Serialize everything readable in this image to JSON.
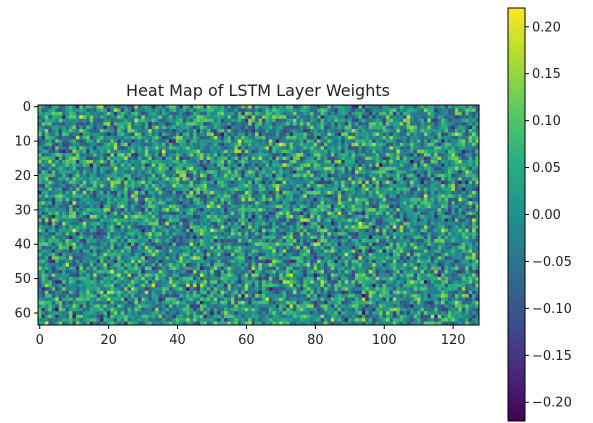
{
  "chart_data": {
    "type": "heatmap",
    "title": "Heat Map of LSTM Layer Weights",
    "xlabel": "",
    "ylabel": "",
    "rows": 64,
    "cols": 128,
    "xlim": [
      -0.5,
      127.5
    ],
    "ylim": [
      63.5,
      -0.5
    ],
    "x_ticks": [
      0,
      20,
      40,
      60,
      80,
      100,
      120
    ],
    "y_ticks": [
      0,
      10,
      20,
      30,
      40,
      50,
      60
    ],
    "x_tick_labels": [
      "0",
      "20",
      "40",
      "60",
      "80",
      "100",
      "120"
    ],
    "y_tick_labels": [
      "0",
      "10",
      "20",
      "30",
      "40",
      "50",
      "60"
    ],
    "value_range": [
      -0.22,
      0.22
    ],
    "colormap": "viridis",
    "cell_values": "random weights, approximately uniform in [-0.22, 0.22]",
    "colorbar": {
      "ticks": [
        0.2,
        0.15,
        0.1,
        0.05,
        0.0,
        -0.05,
        -0.1,
        -0.15,
        -0.2
      ],
      "tick_labels": [
        "0.20",
        "0.15",
        "0.10",
        "0.05",
        "0.00",
        "−0.05",
        "−0.10",
        "−0.15",
        "−0.20"
      ]
    },
    "grid": false,
    "colors": {
      "viridis_low": "#440154",
      "viridis_mid": "#21918c",
      "viridis_high": "#fde725",
      "axis": "#000000",
      "text": "#222222"
    }
  }
}
